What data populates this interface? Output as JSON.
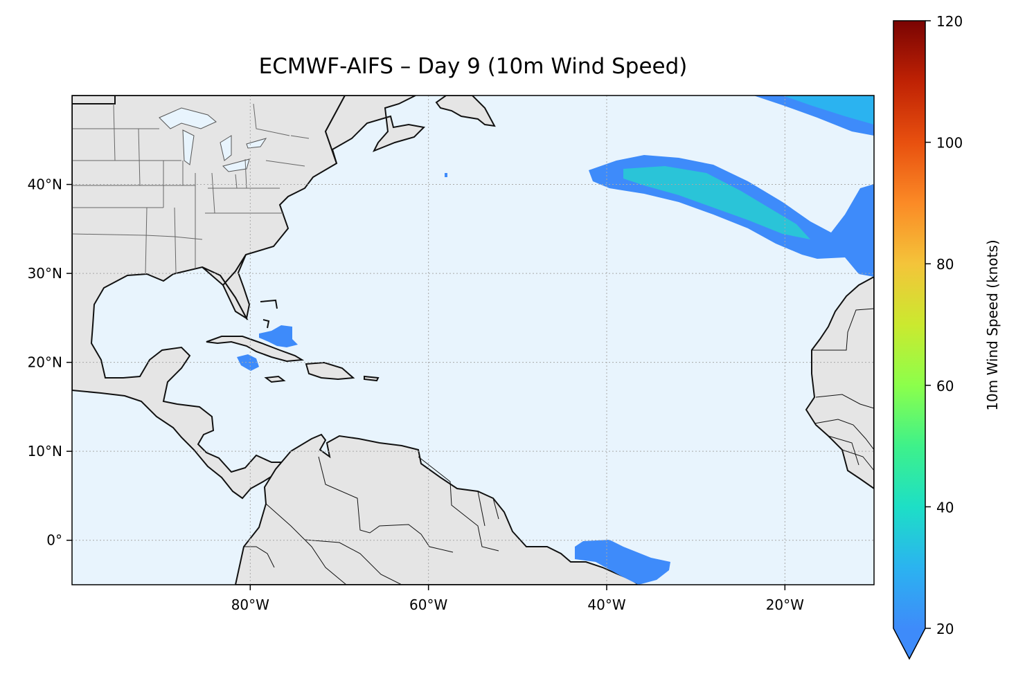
{
  "title": "ECMWF-AIFS – Day 9 (10m Wind Speed)",
  "colorbar": {
    "label": "10m Wind Speed (knots)",
    "ticks": [
      "20",
      "40",
      "60",
      "80",
      "100",
      "120"
    ],
    "min": 20,
    "max": 120,
    "extend": "min"
  },
  "map": {
    "lon_range": [
      -100,
      -10
    ],
    "lat_range": [
      -5,
      50
    ],
    "lon_ticks": [
      {
        "value": -80,
        "label": "80°W"
      },
      {
        "value": -60,
        "label": "60°W"
      },
      {
        "value": -40,
        "label": "40°W"
      },
      {
        "value": -20,
        "label": "20°W"
      }
    ],
    "lat_ticks": [
      {
        "value": 0,
        "label": "0°"
      },
      {
        "value": 10,
        "label": "10°N"
      },
      {
        "value": 20,
        "label": "20°N"
      },
      {
        "value": 30,
        "label": "30°N"
      },
      {
        "value": 40,
        "label": "40°N"
      }
    ],
    "ocean_color": "#e8f4fd",
    "land_color": "#e5e5e5",
    "gridlines": "dotted"
  }
}
